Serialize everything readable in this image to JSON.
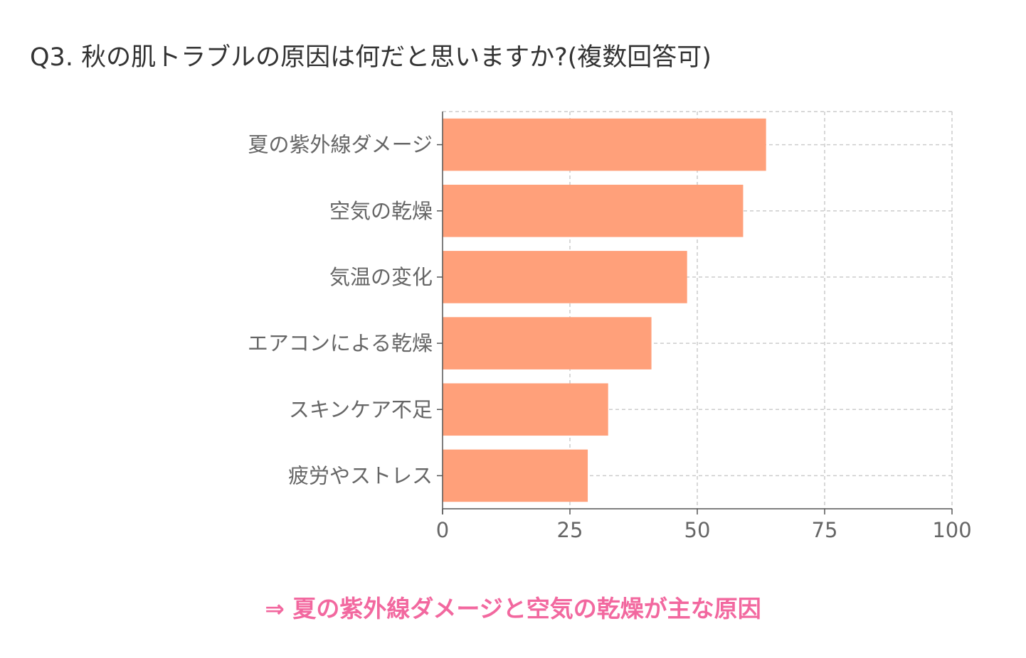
{
  "title": "Q3. 秋の肌トラブルの原因は何だと思いますか?(複数回答可)",
  "conclusion": "⇒ 夏の紫外線ダメージと空気の乾燥が主な原因",
  "chart_data": {
    "type": "bar",
    "orientation": "horizontal",
    "categories": [
      "夏の紫外線ダメージ",
      "空気の乾燥",
      "気温の変化",
      "エアコンによる乾燥",
      "スキンケア不足",
      "疲労やストレス"
    ],
    "values": [
      63.5,
      59,
      48,
      41,
      32.5,
      28.5
    ],
    "xlim": [
      0,
      100
    ],
    "xticks": [
      0,
      25,
      50,
      75,
      100
    ],
    "grid": true,
    "bar_color": "#ffa07a",
    "gridline_color": "#cccccc",
    "axis_color": "#555555",
    "label_color": "#666666"
  }
}
